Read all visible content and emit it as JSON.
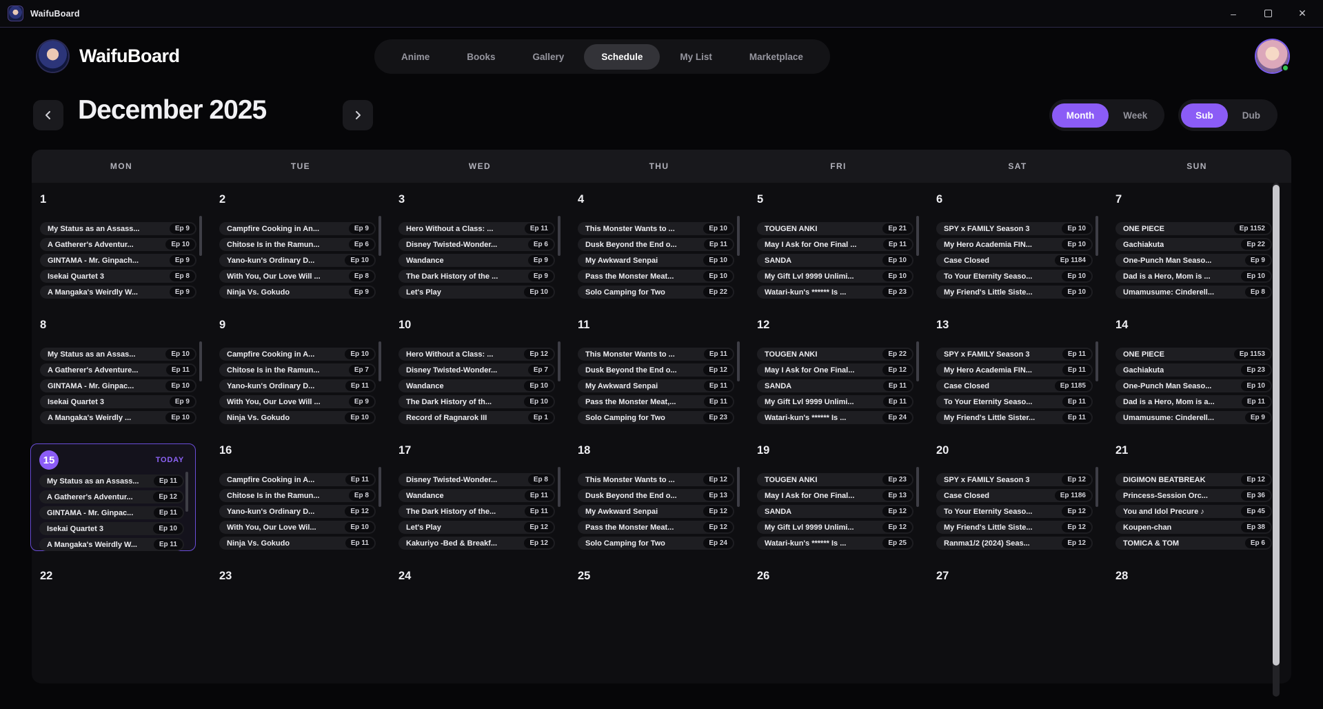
{
  "titlebar": {
    "app_name": "WaifuBoard",
    "minimize": "–",
    "close": "✕"
  },
  "header": {
    "brand": "WaifuBoard",
    "nav": [
      {
        "label": "Anime",
        "active": false
      },
      {
        "label": "Books",
        "active": false
      },
      {
        "label": "Gallery",
        "active": false
      },
      {
        "label": "Schedule",
        "active": true
      },
      {
        "label": "My List",
        "active": false
      },
      {
        "label": "Marketplace",
        "active": false
      }
    ]
  },
  "toolbar": {
    "month_title": "December 2025",
    "view_toggle": {
      "options": [
        "Month",
        "Week"
      ],
      "active": "Month"
    },
    "audio_toggle": {
      "options": [
        "Sub",
        "Dub"
      ],
      "active": "Sub"
    }
  },
  "colors": {
    "accent": "#8b5cf6",
    "today_border": "#6b4ed9",
    "online": "#35c453"
  },
  "calendar": {
    "weekdays": [
      "MON",
      "TUE",
      "WED",
      "THU",
      "FRI",
      "SAT",
      "SUN"
    ],
    "today_label": "TODAY",
    "today_day": 15,
    "weeks": [
      [
        {
          "day": 1,
          "events": [
            {
              "title": "My Status as an Assass...",
              "ep": "Ep 9"
            },
            {
              "title": "A Gatherer's Adventur...",
              "ep": "Ep 10"
            },
            {
              "title": "GINTAMA - Mr. Ginpach...",
              "ep": "Ep 9"
            },
            {
              "title": "Isekai Quartet 3",
              "ep": "Ep 8"
            },
            {
              "title": "A Mangaka's Weirdly W...",
              "ep": "Ep 9"
            }
          ]
        },
        {
          "day": 2,
          "events": [
            {
              "title": "Campfire Cooking in An...",
              "ep": "Ep 9"
            },
            {
              "title": "Chitose Is in the Ramun...",
              "ep": "Ep 6"
            },
            {
              "title": "Yano-kun's Ordinary D...",
              "ep": "Ep 10"
            },
            {
              "title": "With You, Our Love Will ...",
              "ep": "Ep 8"
            },
            {
              "title": "Ninja Vs. Gokudo",
              "ep": "Ep 9"
            }
          ]
        },
        {
          "day": 3,
          "events": [
            {
              "title": "Hero Without a Class: ...",
              "ep": "Ep 11"
            },
            {
              "title": "Disney Twisted-Wonder...",
              "ep": "Ep 6"
            },
            {
              "title": "Wandance",
              "ep": "Ep 9"
            },
            {
              "title": "The Dark History of the ...",
              "ep": "Ep 9"
            },
            {
              "title": "Let's Play",
              "ep": "Ep 10"
            }
          ]
        },
        {
          "day": 4,
          "events": [
            {
              "title": "This Monster Wants to ...",
              "ep": "Ep 10"
            },
            {
              "title": "Dusk Beyond the End o...",
              "ep": "Ep 11"
            },
            {
              "title": "My Awkward Senpai",
              "ep": "Ep 10"
            },
            {
              "title": "Pass the Monster Meat...",
              "ep": "Ep 10"
            },
            {
              "title": "Solo Camping for Two",
              "ep": "Ep 22"
            }
          ]
        },
        {
          "day": 5,
          "events": [
            {
              "title": "TOUGEN ANKI",
              "ep": "Ep 21"
            },
            {
              "title": "May I Ask for One Final ...",
              "ep": "Ep 11"
            },
            {
              "title": "SANDA",
              "ep": "Ep 10"
            },
            {
              "title": "My Gift Lvl 9999 Unlimi...",
              "ep": "Ep 10"
            },
            {
              "title": "Watari-kun's ****** Is ...",
              "ep": "Ep 23"
            }
          ]
        },
        {
          "day": 6,
          "events": [
            {
              "title": "SPY x FAMILY Season 3",
              "ep": "Ep 10"
            },
            {
              "title": "My Hero Academia FIN...",
              "ep": "Ep 10"
            },
            {
              "title": "Case Closed",
              "ep": "Ep 1184"
            },
            {
              "title": "To Your Eternity Seaso...",
              "ep": "Ep 10"
            },
            {
              "title": "My Friend's Little Siste...",
              "ep": "Ep 10"
            }
          ]
        },
        {
          "day": 7,
          "events": [
            {
              "title": "ONE PIECE",
              "ep": "Ep 1152"
            },
            {
              "title": "Gachiakuta",
              "ep": "Ep 22"
            },
            {
              "title": "One-Punch Man Seaso...",
              "ep": "Ep 9"
            },
            {
              "title": "Dad is a Hero, Mom is ...",
              "ep": "Ep 10"
            },
            {
              "title": "Umamusume: Cinderell...",
              "ep": "Ep 8"
            }
          ]
        }
      ],
      [
        {
          "day": 8,
          "events": [
            {
              "title": "My Status as an Assas...",
              "ep": "Ep 10"
            },
            {
              "title": "A Gatherer's Adventure...",
              "ep": "Ep 11"
            },
            {
              "title": "GINTAMA - Mr. Ginpac...",
              "ep": "Ep 10"
            },
            {
              "title": "Isekai Quartet 3",
              "ep": "Ep 9"
            },
            {
              "title": "A Mangaka's Weirdly ...",
              "ep": "Ep 10"
            }
          ]
        },
        {
          "day": 9,
          "events": [
            {
              "title": "Campfire Cooking in A...",
              "ep": "Ep 10"
            },
            {
              "title": "Chitose Is in the Ramun...",
              "ep": "Ep 7"
            },
            {
              "title": "Yano-kun's Ordinary D...",
              "ep": "Ep 11"
            },
            {
              "title": "With You, Our Love Will ...",
              "ep": "Ep 9"
            },
            {
              "title": "Ninja Vs. Gokudo",
              "ep": "Ep 10"
            }
          ]
        },
        {
          "day": 10,
          "events": [
            {
              "title": "Hero Without a Class: ...",
              "ep": "Ep 12"
            },
            {
              "title": "Disney Twisted-Wonder...",
              "ep": "Ep 7"
            },
            {
              "title": "Wandance",
              "ep": "Ep 10"
            },
            {
              "title": "The Dark History of th...",
              "ep": "Ep 10"
            },
            {
              "title": "Record of Ragnarok III",
              "ep": "Ep 1"
            }
          ]
        },
        {
          "day": 11,
          "events": [
            {
              "title": "This Monster Wants to ...",
              "ep": "Ep 11"
            },
            {
              "title": "Dusk Beyond the End o...",
              "ep": "Ep 12"
            },
            {
              "title": "My Awkward Senpai",
              "ep": "Ep 11"
            },
            {
              "title": "Pass the Monster Meat,...",
              "ep": "Ep 11"
            },
            {
              "title": "Solo Camping for Two",
              "ep": "Ep 23"
            }
          ]
        },
        {
          "day": 12,
          "events": [
            {
              "title": "TOUGEN ANKI",
              "ep": "Ep 22"
            },
            {
              "title": "May I Ask for One Final...",
              "ep": "Ep 12"
            },
            {
              "title": "SANDA",
              "ep": "Ep 11"
            },
            {
              "title": "My Gift Lvl 9999 Unlimi...",
              "ep": "Ep 11"
            },
            {
              "title": "Watari-kun's ****** Is ...",
              "ep": "Ep 24"
            }
          ]
        },
        {
          "day": 13,
          "events": [
            {
              "title": "SPY x FAMILY Season 3",
              "ep": "Ep 11"
            },
            {
              "title": "My Hero Academia FIN...",
              "ep": "Ep 11"
            },
            {
              "title": "Case Closed",
              "ep": "Ep 1185"
            },
            {
              "title": "To Your Eternity Seaso...",
              "ep": "Ep 11"
            },
            {
              "title": "My Friend's Little Sister...",
              "ep": "Ep 11"
            }
          ]
        },
        {
          "day": 14,
          "events": [
            {
              "title": "ONE PIECE",
              "ep": "Ep 1153"
            },
            {
              "title": "Gachiakuta",
              "ep": "Ep 23"
            },
            {
              "title": "One-Punch Man Seaso...",
              "ep": "Ep 10"
            },
            {
              "title": "Dad is a Hero, Mom is a...",
              "ep": "Ep 11"
            },
            {
              "title": "Umamusume: Cinderell...",
              "ep": "Ep 9"
            }
          ]
        }
      ],
      [
        {
          "day": 15,
          "today": true,
          "events": [
            {
              "title": "My Status as an Assass...",
              "ep": "Ep 11"
            },
            {
              "title": "A Gatherer's Adventur...",
              "ep": "Ep 12"
            },
            {
              "title": "GINTAMA - Mr. Ginpac...",
              "ep": "Ep 11"
            },
            {
              "title": "Isekai Quartet 3",
              "ep": "Ep 10"
            },
            {
              "title": "A Mangaka's Weirdly W...",
              "ep": "Ep 11"
            }
          ]
        },
        {
          "day": 16,
          "events": [
            {
              "title": "Campfire Cooking in A...",
              "ep": "Ep 11"
            },
            {
              "title": "Chitose Is in the Ramun...",
              "ep": "Ep 8"
            },
            {
              "title": "Yano-kun's Ordinary D...",
              "ep": "Ep 12"
            },
            {
              "title": "With You, Our Love Wil...",
              "ep": "Ep 10"
            },
            {
              "title": "Ninja Vs. Gokudo",
              "ep": "Ep 11"
            }
          ]
        },
        {
          "day": 17,
          "events": [
            {
              "title": "Disney Twisted-Wonder...",
              "ep": "Ep 8"
            },
            {
              "title": "Wandance",
              "ep": "Ep 11"
            },
            {
              "title": "The Dark History of the...",
              "ep": "Ep 11"
            },
            {
              "title": "Let's Play",
              "ep": "Ep 12"
            },
            {
              "title": "Kakuriyo -Bed & Breakf...",
              "ep": "Ep 12"
            }
          ]
        },
        {
          "day": 18,
          "events": [
            {
              "title": "This Monster Wants to ...",
              "ep": "Ep 12"
            },
            {
              "title": "Dusk Beyond the End o...",
              "ep": "Ep 13"
            },
            {
              "title": "My Awkward Senpai",
              "ep": "Ep 12"
            },
            {
              "title": "Pass the Monster Meat...",
              "ep": "Ep 12"
            },
            {
              "title": "Solo Camping for Two",
              "ep": "Ep 24"
            }
          ]
        },
        {
          "day": 19,
          "events": [
            {
              "title": "TOUGEN ANKI",
              "ep": "Ep 23"
            },
            {
              "title": "May I Ask for One Final...",
              "ep": "Ep 13"
            },
            {
              "title": "SANDA",
              "ep": "Ep 12"
            },
            {
              "title": "My Gift Lvl 9999 Unlimi...",
              "ep": "Ep 12"
            },
            {
              "title": "Watari-kun's ****** Is ...",
              "ep": "Ep 25"
            }
          ]
        },
        {
          "day": 20,
          "events": [
            {
              "title": "SPY x FAMILY Season 3",
              "ep": "Ep 12"
            },
            {
              "title": "Case Closed",
              "ep": "Ep 1186"
            },
            {
              "title": "To Your Eternity Seaso...",
              "ep": "Ep 12"
            },
            {
              "title": "My Friend's Little Siste...",
              "ep": "Ep 12"
            },
            {
              "title": "Ranma1/2 (2024) Seas...",
              "ep": "Ep 12"
            }
          ]
        },
        {
          "day": 21,
          "events": [
            {
              "title": "DIGIMON BEATBREAK",
              "ep": "Ep 12"
            },
            {
              "title": "Princess-Session Orc...",
              "ep": "Ep 36"
            },
            {
              "title": "You and Idol Precure ♪",
              "ep": "Ep 45"
            },
            {
              "title": "Koupen-chan",
              "ep": "Ep 38"
            },
            {
              "title": "TOMICA & TOM",
              "ep": "Ep 6"
            }
          ]
        }
      ],
      [
        {
          "day": 22,
          "events": []
        },
        {
          "day": 23,
          "events": []
        },
        {
          "day": 24,
          "events": []
        },
        {
          "day": 25,
          "events": []
        },
        {
          "day": 26,
          "events": []
        },
        {
          "day": 27,
          "events": []
        },
        {
          "day": 28,
          "events": []
        }
      ]
    ]
  }
}
